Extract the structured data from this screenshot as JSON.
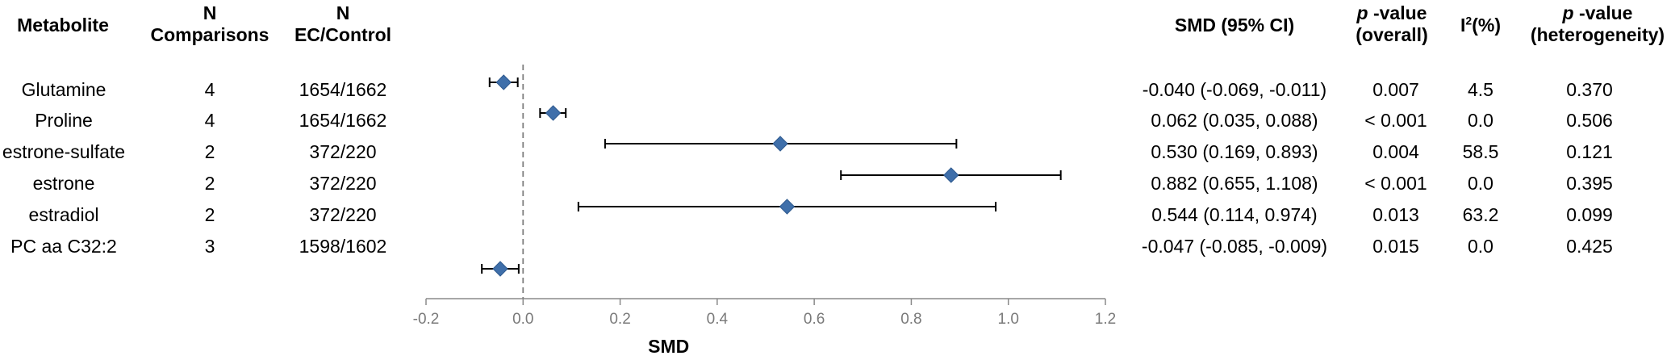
{
  "headers": {
    "metabolite": "Metabolite",
    "n_comparisons_line1": "N",
    "n_comparisons_line2": "Comparisons",
    "n_ec_line1": "N",
    "n_ec_line2": "EC/Control",
    "smd_ci": "SMD (95% CI)",
    "p_overall_p": "p",
    "p_overall_rest": " -value",
    "p_overall_line2": "(overall)",
    "i2_letter": "I",
    "i2_sup": "2",
    "i2_rest": "(%)",
    "p_het_p": "p",
    "p_het_rest": " -value",
    "p_het_line2": "(heterogeneity)"
  },
  "rows": [
    {
      "metabolite": "Glutamine",
      "n_comparisons": "4",
      "n_ec_control": "1654/1662",
      "smd_ci": "-0.040 (-0.069, -0.011)",
      "p_overall": "0.007",
      "i2": "4.5",
      "p_het": "0.370"
    },
    {
      "metabolite": "Proline",
      "n_comparisons": "4",
      "n_ec_control": "1654/1662",
      "smd_ci": "0.062 (0.035, 0.088)",
      "p_overall": "< 0.001",
      "i2": "0.0",
      "p_het": "0.506"
    },
    {
      "metabolite": "estrone-sulfate",
      "n_comparisons": "2",
      "n_ec_control": "372/220",
      "smd_ci": "0.530 (0.169, 0.893)",
      "p_overall": "0.004",
      "i2": "58.5",
      "p_het": "0.121"
    },
    {
      "metabolite": "estrone",
      "n_comparisons": "2",
      "n_ec_control": "372/220",
      "smd_ci": "0.882 (0.655, 1.108)",
      "p_overall": "< 0.001",
      "i2": "0.0",
      "p_het": "0.395"
    },
    {
      "metabolite": "estradiol",
      "n_comparisons": "2",
      "n_ec_control": "372/220",
      "smd_ci": "0.544 (0.114, 0.974)",
      "p_overall": "0.013",
      "i2": "63.2",
      "p_het": "0.099"
    },
    {
      "metabolite": "PC aa C32:2",
      "n_comparisons": "3",
      "n_ec_control": "1598/1602",
      "smd_ci": "-0.047 (-0.085, -0.009)",
      "p_overall": "0.015",
      "i2": "0.0",
      "p_het": "0.425"
    }
  ],
  "chart_data": {
    "type": "forest",
    "xlabel": "SMD",
    "xlim": [
      -0.2,
      1.2
    ],
    "xticks": [
      -0.2,
      0.0,
      0.2,
      0.4,
      0.6,
      0.8,
      1.0,
      1.2
    ],
    "xtick_labels": [
      "-0.2",
      "0.0",
      "0.2",
      "0.4",
      "0.6",
      "0.8",
      "1.0",
      "1.2"
    ],
    "reference_line": 0,
    "marker_color": "#3f6faa",
    "points": [
      {
        "label": "Glutamine",
        "estimate": -0.04,
        "lower": -0.069,
        "upper": -0.011
      },
      {
        "label": "Proline",
        "estimate": 0.062,
        "lower": 0.035,
        "upper": 0.088
      },
      {
        "label": "estrone-sulfate",
        "estimate": 0.53,
        "lower": 0.169,
        "upper": 0.893
      },
      {
        "label": "estrone",
        "estimate": 0.882,
        "lower": 0.655,
        "upper": 1.108
      },
      {
        "label": "estradiol",
        "estimate": 0.544,
        "lower": 0.114,
        "upper": 0.974
      },
      {
        "label": "PC aa C32:2",
        "estimate": -0.047,
        "lower": -0.085,
        "upper": -0.009
      }
    ]
  }
}
